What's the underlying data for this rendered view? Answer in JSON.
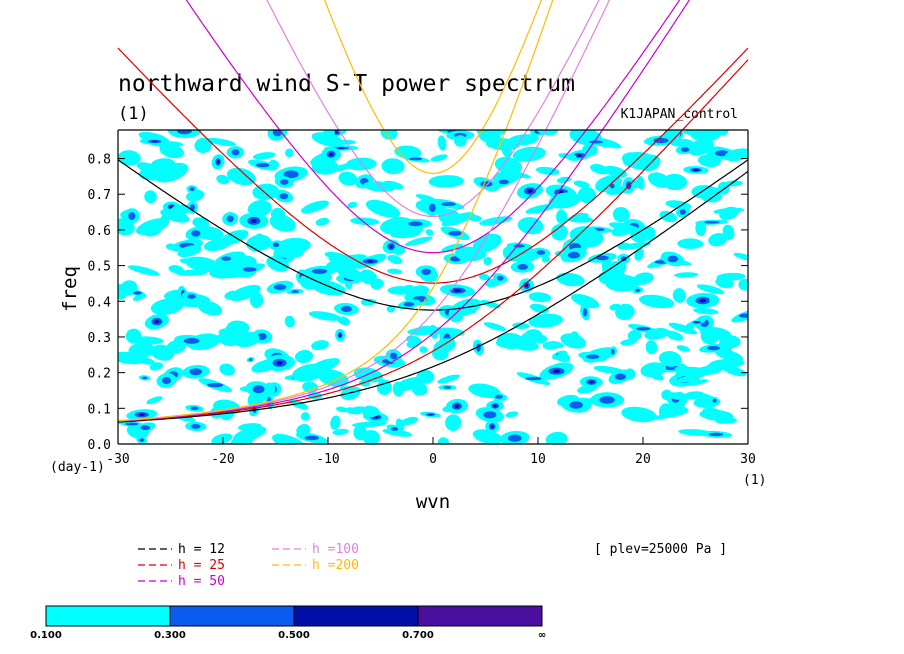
{
  "chart_data": {
    "type": "heatmap",
    "title": "northward wind S-T power spectrum",
    "panel_label": "(1)",
    "experiment": "K1JAPAN_control",
    "xlabel": "wvn",
    "ylabel": "freq",
    "x_unit_label": "(1)",
    "y_unit_label": "(day-1)",
    "xlim": [
      -30,
      30
    ],
    "ylim": [
      0,
      0.88
    ],
    "xticks": [
      "-30",
      "-20",
      "-10",
      "0",
      "10",
      "20",
      "30"
    ],
    "yticks": [
      "0.0",
      "0.1",
      "0.2",
      "0.3",
      "0.4",
      "0.5",
      "0.6",
      "0.7",
      "0.8"
    ],
    "grid": false,
    "level_annotation": "[ plev=25000 Pa ]",
    "contour_levels": [
      "0.100",
      "0.300",
      "0.500",
      "0.700",
      "∞"
    ],
    "contour_colors": [
      "#00ffff",
      "#0a5cf0",
      "#0010a8",
      "#4b0fa0"
    ],
    "dispersion_curves": [
      {
        "name": "h = 12",
        "h": 12,
        "color": "#000000"
      },
      {
        "name": "h = 25",
        "h": 25,
        "color": "#dd0000"
      },
      {
        "name": "h = 50",
        "h": 50,
        "color": "#cc00cc"
      },
      {
        "name": "h =100",
        "h": 100,
        "color": "#e080e0"
      },
      {
        "name": "h =200",
        "h": 200,
        "color": "#ffbb00"
      }
    ],
    "legend_placement": "bottom-left"
  }
}
